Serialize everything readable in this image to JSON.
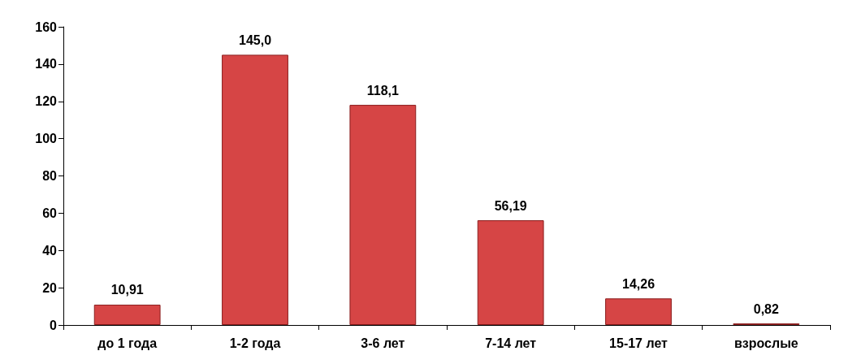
{
  "chart_data": {
    "type": "bar",
    "categories": [
      "до 1 года",
      "1-2 года",
      "3-6 лет",
      "7-14 лет",
      "15-17 лет",
      "взрослые"
    ],
    "values": [
      10.91,
      145.0,
      118.1,
      56.19,
      14.26,
      0.82
    ],
    "value_labels": [
      "10,91",
      "145,0",
      "118,1",
      "56,19",
      "14,26",
      "0,82"
    ],
    "color": "#d64545",
    "ylim": [
      0,
      160
    ],
    "yticks": [
      0,
      20,
      40,
      60,
      80,
      100,
      120,
      140,
      160
    ],
    "grid": false
  }
}
